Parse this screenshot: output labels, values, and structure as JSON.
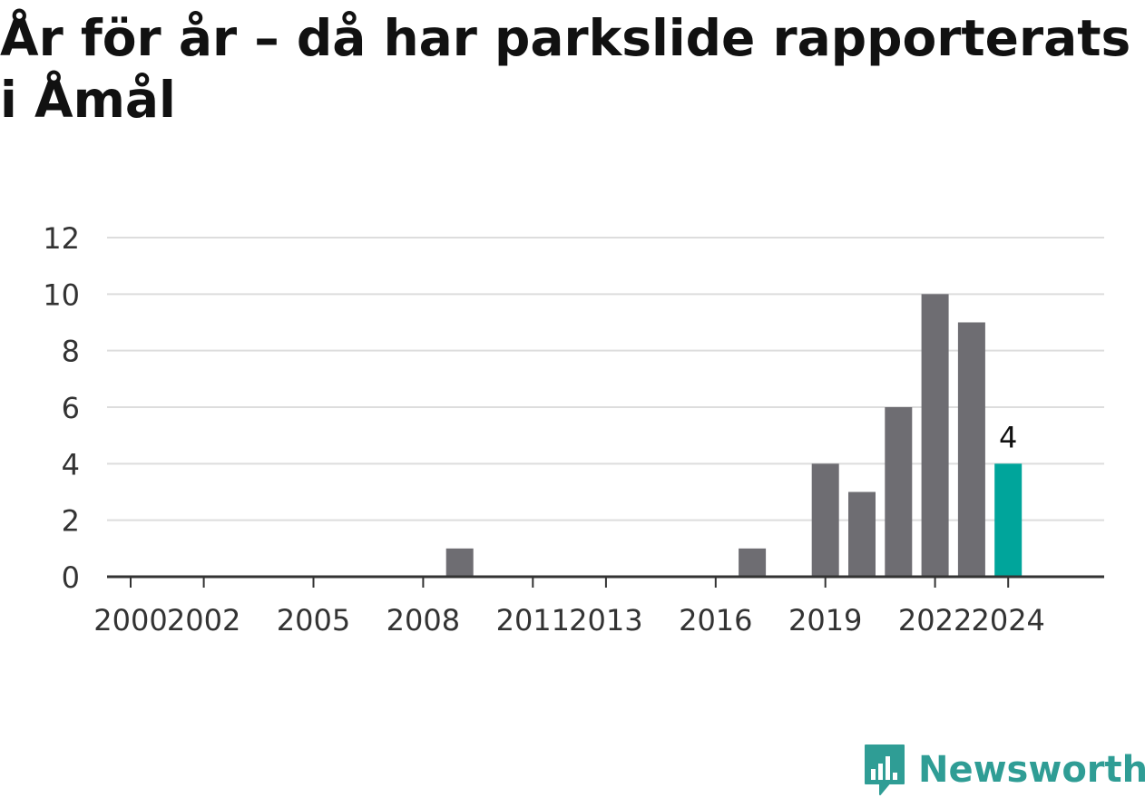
{
  "title": "År för år – då har parkslide rapporterats i Åmål",
  "brand": {
    "name": "Newsworthy",
    "color": "#2f9d95",
    "icon": "newsworthy-logo-icon"
  },
  "colors": {
    "bar": "#6e6d72",
    "highlight": "#00a59b",
    "grid": "#dddddd",
    "axis": "#333333"
  },
  "chart_data": {
    "type": "bar",
    "title": "År för år – då har parkslide rapporterats i Åmål",
    "xlabel": "",
    "ylabel": "",
    "categories": [
      "2000",
      "2001",
      "2002",
      "2003",
      "2004",
      "2005",
      "2006",
      "2007",
      "2008",
      "2009",
      "2010",
      "2011",
      "2012",
      "2013",
      "2014",
      "2015",
      "2016",
      "2017",
      "2018",
      "2019",
      "2020",
      "2021",
      "2022",
      "2023",
      "2024"
    ],
    "values": [
      0,
      0,
      0,
      0,
      0,
      0,
      0,
      0,
      0,
      1,
      0,
      0,
      0,
      0,
      0,
      0,
      0,
      1,
      0,
      4,
      3,
      6,
      10,
      9,
      4
    ],
    "x_tick_labels": [
      "2000",
      "2002",
      "2005",
      "2008",
      "2011",
      "2013",
      "2016",
      "2019",
      "2022",
      "2024"
    ],
    "yticks": [
      0,
      2,
      4,
      6,
      8,
      10,
      12
    ],
    "ylim": [
      0,
      12
    ],
    "grid": true,
    "highlight_category": "2024",
    "data_labels": [
      {
        "category": "2024",
        "text": "4"
      }
    ]
  }
}
